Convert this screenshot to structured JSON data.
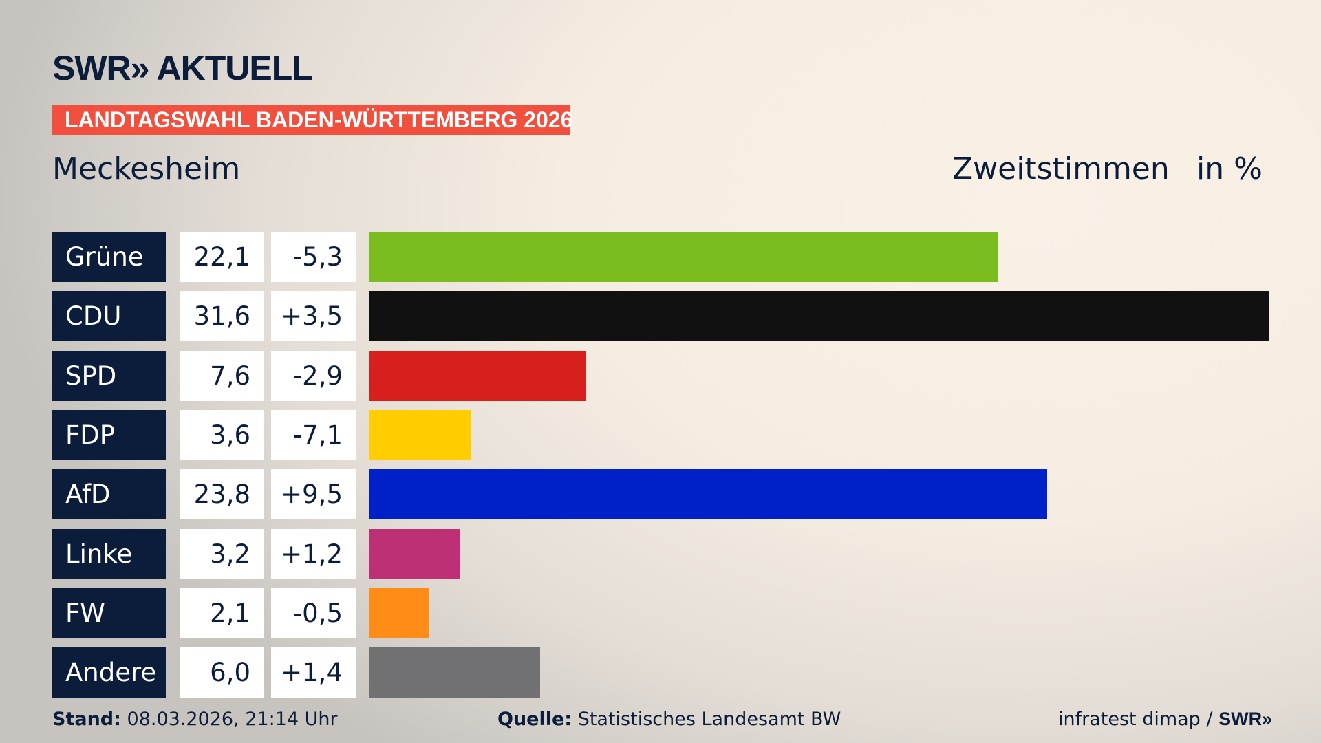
{
  "header": {
    "logo": "SWR» AKTUELL",
    "banner": "LANDTAGSWAHL BADEN-WÜRTTEMBERG 2026",
    "place": "Meckesheim",
    "vote_type": "Zweitstimmen",
    "unit": "in %"
  },
  "chart_data": {
    "type": "bar",
    "orientation": "horizontal",
    "xlim": [
      0,
      31.6
    ],
    "categories": [
      "Grüne",
      "CDU",
      "SPD",
      "FDP",
      "AfD",
      "Linke",
      "FW",
      "Andere"
    ],
    "values": [
      22.1,
      31.6,
      7.6,
      3.6,
      23.8,
      3.2,
      2.1,
      6.0
    ],
    "value_labels": [
      "22,1",
      "31,6",
      "7,6",
      "3,6",
      "23,8",
      "3,2",
      "2,1",
      "6,0"
    ],
    "diff_labels": [
      "-5,3",
      "+3,5",
      "-2,9",
      "-7,1",
      "+9,5",
      "+1,2",
      "-0,5",
      "+1,4"
    ],
    "colors": [
      "#7bbd1e",
      "#111111",
      "#d71f1d",
      "#ffcd00",
      "#0021c7",
      "#be3075",
      "#fe8c16",
      "#717173"
    ]
  },
  "footer": {
    "stand_label": "Stand:",
    "stand_value": "08.03.2026, 21:14 Uhr",
    "source_label": "Quelle:",
    "source_value": "Statistisches Landesamt BW",
    "credit": "infratest dimap / ",
    "credit_logo": "SWR»"
  }
}
